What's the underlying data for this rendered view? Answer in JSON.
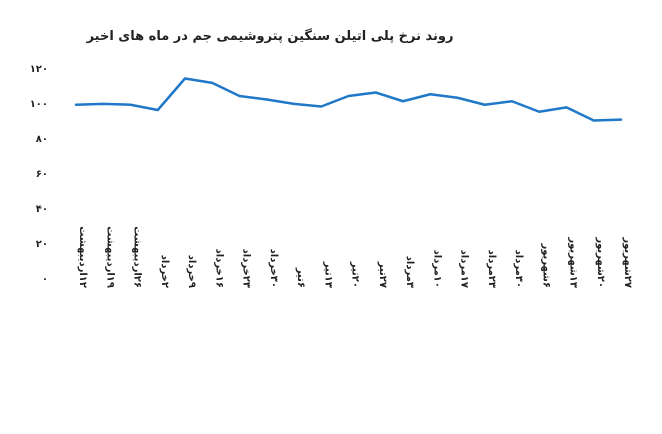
{
  "chart_data": {
    "type": "line",
    "title": "روند نرخ پلی اتیلن سنگین پتروشیمی جم در ماه های اخیر",
    "xlabel": "",
    "ylabel": "",
    "ylim": [
      0,
      120
    ],
    "y_ticks": [
      "۰",
      "۲۰",
      "۴۰",
      "۶۰",
      "۸۰",
      "۱۰۰",
      "۱۲۰"
    ],
    "y_tick_values": [
      0,
      20,
      40,
      60,
      80,
      100,
      120
    ],
    "grid": false,
    "legend": "none",
    "line_color": "#1f78c8",
    "categories": [
      "۱۲اردیبهشت",
      "۱۹اردیبهشت",
      "۲۶اردیبهشت",
      "۲خرداد",
      "۹خرداد",
      "۱۶خرداد",
      "۲۳خرداد",
      "۳۰خرداد",
      "۶تیر",
      "۱۳تیر",
      "۲۰تیر",
      "۲۷تیر",
      "۳مرداد",
      "۱۰مرداد",
      "۱۷مرداد",
      "۲۳مرداد",
      "۳۰مرداد",
      "۶شهریور",
      "۱۳شهریور",
      "۲۰شهریور",
      "۲۷شهریور"
    ],
    "series": [
      {
        "values": [
          99,
          99.5,
          99,
          96,
          114,
          111.5,
          104,
          102,
          99.5,
          98,
          104,
          106,
          101,
          105,
          103,
          99,
          101,
          95,
          97.5,
          90,
          90.5
        ]
      }
    ]
  }
}
